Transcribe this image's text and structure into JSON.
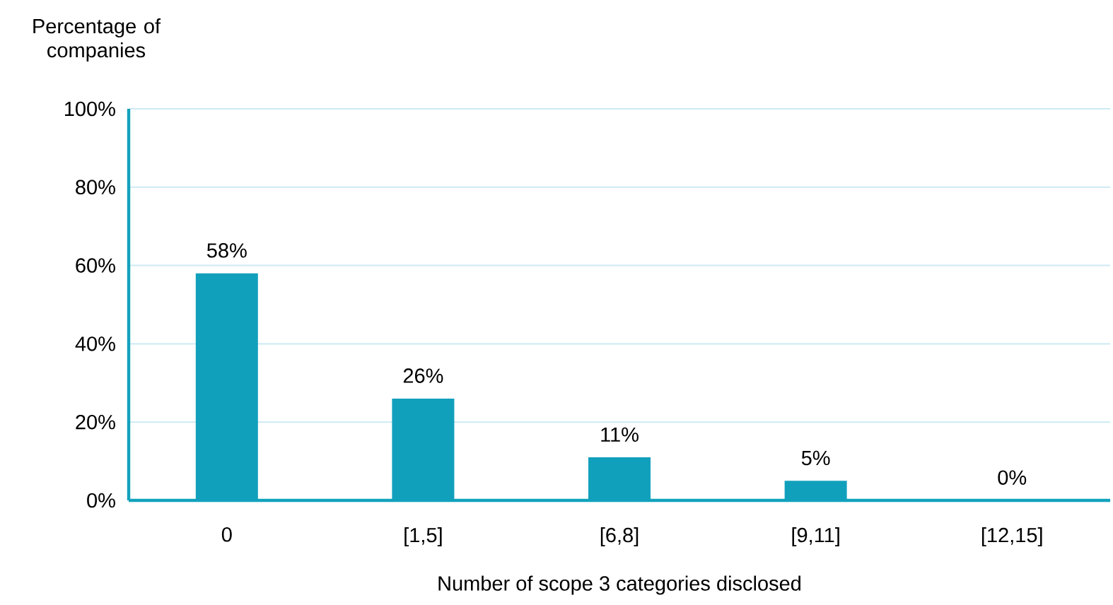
{
  "chart_data": {
    "type": "bar",
    "ylabel": "Percentage of companies",
    "xlabel": "Number of scope 3 categories disclosed",
    "categories": [
      "0",
      "[1,5]",
      "[6,8]",
      "[9,11]",
      "[12,15]"
    ],
    "values": [
      58,
      26,
      11,
      5,
      0
    ],
    "value_labels": [
      "58%",
      "26%",
      "11%",
      "5%",
      "0%"
    ],
    "color": "#11a0bc",
    "ylim": [
      0,
      100
    ],
    "yticks": [
      {
        "value": 0,
        "label": "0%"
      },
      {
        "value": 20,
        "label": "20%"
      },
      {
        "value": 40,
        "label": "40%"
      },
      {
        "value": 60,
        "label": "60%"
      },
      {
        "value": 80,
        "label": "80%"
      },
      {
        "value": 100,
        "label": "100%"
      }
    ],
    "grid": "y"
  }
}
